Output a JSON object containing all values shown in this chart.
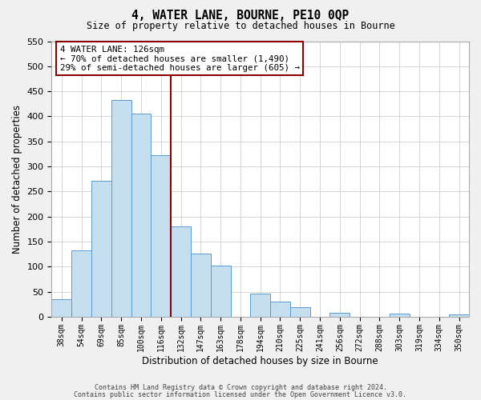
{
  "title": "4, WATER LANE, BOURNE, PE10 0QP",
  "subtitle": "Size of property relative to detached houses in Bourne",
  "xlabel": "Distribution of detached houses by size in Bourne",
  "ylabel": "Number of detached properties",
  "bar_labels": [
    "38sqm",
    "54sqm",
    "69sqm",
    "85sqm",
    "100sqm",
    "116sqm",
    "132sqm",
    "147sqm",
    "163sqm",
    "178sqm",
    "194sqm",
    "210sqm",
    "225sqm",
    "241sqm",
    "256sqm",
    "272sqm",
    "288sqm",
    "303sqm",
    "319sqm",
    "334sqm",
    "350sqm"
  ],
  "bar_values": [
    35,
    133,
    272,
    432,
    405,
    323,
    181,
    126,
    103,
    0,
    46,
    30,
    20,
    0,
    8,
    0,
    0,
    6,
    0,
    0,
    5
  ],
  "bar_color": "#c5dff0",
  "bar_edge_color": "#5b9bd5",
  "vline_index": 5.5,
  "vline_color": "#8b0000",
  "annotation_text_line1": "4 WATER LANE: 126sqm",
  "annotation_text_line2": "← 70% of detached houses are smaller (1,490)",
  "annotation_text_line3": "29% of semi-detached houses are larger (605) →",
  "annotation_box_color": "#8b0000",
  "ylim": [
    0,
    550
  ],
  "yticks": [
    0,
    50,
    100,
    150,
    200,
    250,
    300,
    350,
    400,
    450,
    500,
    550
  ],
  "footer_line1": "Contains HM Land Registry data © Crown copyright and database right 2024.",
  "footer_line2": "Contains public sector information licensed under the Open Government Licence v3.0.",
  "bg_color": "#f0f0f0",
  "plot_bg_color": "#ffffff",
  "grid_color": "#d0d0d0"
}
